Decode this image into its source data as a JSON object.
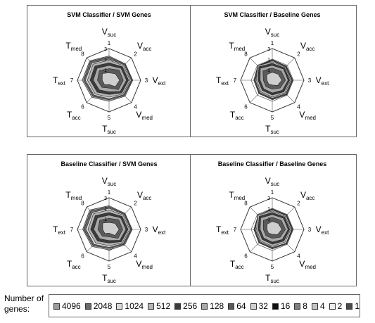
{
  "axes": {
    "names": [
      {
        "main": "V",
        "sub": "suc",
        "num": "1"
      },
      {
        "main": "V",
        "sub": "acc",
        "num": "2"
      },
      {
        "main": "V",
        "sub": "ext",
        "num": "3"
      },
      {
        "main": "V",
        "sub": "med",
        "num": "4"
      },
      {
        "main": "T",
        "sub": "suc",
        "num": "5"
      },
      {
        "main": "T",
        "sub": "acc",
        "num": "6"
      },
      {
        "main": "T",
        "sub": "ext",
        "num": "7"
      },
      {
        "main": "T",
        "sub": "med",
        "num": "8"
      }
    ],
    "tick_labels": [
      "-1",
      "1",
      "3"
    ]
  },
  "legend": {
    "title": "Number of genes:",
    "items": [
      {
        "label": "4096",
        "color": "#9a9a9a"
      },
      {
        "label": "2048",
        "color": "#6a6a6a"
      },
      {
        "label": "1024",
        "color": "#d8d8d8"
      },
      {
        "label": "512",
        "color": "#b5b5b5"
      },
      {
        "label": "256",
        "color": "#3c3c3c"
      },
      {
        "label": "128",
        "color": "#a8a8a8"
      },
      {
        "label": "64",
        "color": "#5a5a5a"
      },
      {
        "label": "32",
        "color": "#cfcfcf"
      },
      {
        "label": "16",
        "color": "#111111"
      },
      {
        "label": "8",
        "color": "#7f7f7f"
      },
      {
        "label": "4",
        "color": "#c3c3c3"
      },
      {
        "label": "2",
        "color": "#ededed"
      },
      {
        "label": "1",
        "color": "#4a4a4a"
      }
    ]
  },
  "chart_data": [
    {
      "type": "radar",
      "title": "SVM Classifier / SVM Genes",
      "rlim": [
        -3,
        3
      ],
      "rticks": [
        -1,
        1,
        3
      ],
      "series": [
        {
          "values": [
            1.6,
            1.4,
            1.5,
            1.3,
            1.0,
            1.6,
            2.1,
            2.2
          ]
        },
        {
          "values": [
            1.4,
            1.3,
            1.4,
            1.1,
            0.7,
            1.3,
            1.8,
            2.0
          ]
        },
        {
          "values": [
            1.0,
            1.1,
            1.2,
            0.9,
            0.5,
            1.0,
            1.5,
            1.6
          ]
        },
        {
          "values": [
            0.8,
            0.9,
            1.0,
            0.7,
            0.2,
            0.7,
            1.1,
            1.3
          ]
        },
        {
          "values": [
            0.3,
            0.6,
            0.7,
            0.4,
            -0.3,
            0.2,
            0.6,
            0.8
          ]
        },
        {
          "values": [
            -0.2,
            0.2,
            0.3,
            0.0,
            -0.8,
            -0.4,
            0.0,
            0.2
          ]
        },
        {
          "values": [
            -0.8,
            -0.3,
            -0.3,
            -0.5,
            -1.5,
            -1.1,
            -0.8,
            -0.4
          ]
        },
        {
          "values": [
            -1.6,
            -1.3,
            -1.0,
            -1.3,
            -2.2,
            -1.8,
            -1.7,
            -1.2
          ]
        }
      ]
    },
    {
      "type": "radar",
      "title": "SVM Classifier / Baseline Genes",
      "rlim": [
        -3,
        3
      ],
      "rticks": [
        -1,
        1,
        3
      ],
      "series": [
        {
          "values": [
            0.9,
            0.8,
            0.9,
            0.9,
            0.7,
            0.6,
            0.5,
            0.9
          ]
        },
        {
          "values": [
            0.8,
            0.7,
            0.8,
            0.8,
            0.6,
            0.5,
            0.4,
            0.8
          ]
        },
        {
          "values": [
            0.7,
            0.6,
            0.7,
            0.6,
            0.4,
            0.3,
            0.2,
            0.7
          ]
        },
        {
          "values": [
            0.5,
            0.5,
            0.5,
            0.4,
            0.2,
            0.1,
            0.0,
            0.9
          ]
        },
        {
          "values": [
            0.2,
            0.3,
            0.3,
            0.1,
            -0.2,
            -0.3,
            -0.3,
            0.6
          ]
        },
        {
          "values": [
            -0.2,
            0.0,
            0.0,
            -0.3,
            -0.6,
            -0.7,
            -0.7,
            0.2
          ]
        },
        {
          "values": [
            -0.7,
            -0.6,
            -0.5,
            -0.9,
            -1.3,
            -1.3,
            -1.3,
            -0.5
          ]
        },
        {
          "values": [
            -1.5,
            -1.4,
            -1.2,
            -1.6,
            -2.1,
            -2.0,
            -2.0,
            -1.5
          ]
        }
      ]
    },
    {
      "type": "radar",
      "title": "Baseline Classifier / SVM Genes",
      "rlim": [
        -3,
        3
      ],
      "rticks": [
        -1,
        1,
        3
      ],
      "series": [
        {
          "values": [
            1.5,
            1.3,
            1.4,
            1.2,
            0.9,
            1.6,
            2.0,
            2.2
          ]
        },
        {
          "values": [
            1.3,
            1.2,
            1.3,
            1.0,
            0.6,
            1.3,
            1.8,
            1.9
          ]
        },
        {
          "values": [
            1.0,
            1.0,
            1.1,
            0.8,
            0.4,
            1.0,
            1.4,
            1.5
          ]
        },
        {
          "values": [
            0.7,
            0.8,
            0.9,
            0.6,
            0.1,
            0.6,
            1.0,
            1.2
          ]
        },
        {
          "values": [
            0.2,
            0.5,
            0.6,
            0.3,
            -0.4,
            0.1,
            0.5,
            0.7
          ]
        },
        {
          "values": [
            -0.3,
            0.1,
            0.2,
            -0.1,
            -0.9,
            -0.5,
            -0.1,
            0.1
          ]
        },
        {
          "values": [
            -0.9,
            -0.4,
            -0.4,
            -0.6,
            -1.6,
            -1.2,
            -0.9,
            -0.5
          ]
        },
        {
          "values": [
            -1.7,
            -1.4,
            -1.1,
            -1.4,
            -2.3,
            -1.9,
            -1.8,
            -1.3
          ]
        }
      ]
    },
    {
      "type": "radar",
      "title": "Baseline Classifier / Baseline Genes",
      "rlim": [
        -3,
        3
      ],
      "rticks": [
        -1,
        1,
        3
      ],
      "series": [
        {
          "values": [
            0.9,
            0.9,
            0.9,
            0.9,
            0.7,
            0.6,
            0.5,
            0.8
          ]
        },
        {
          "values": [
            0.8,
            0.8,
            0.8,
            0.8,
            0.6,
            0.5,
            0.4,
            0.7
          ]
        },
        {
          "values": [
            0.7,
            0.7,
            0.7,
            0.7,
            0.4,
            0.3,
            0.2,
            0.9
          ]
        },
        {
          "values": [
            0.5,
            0.5,
            0.5,
            0.4,
            0.2,
            0.1,
            0.0,
            0.8
          ]
        },
        {
          "values": [
            0.2,
            0.3,
            0.3,
            0.1,
            -0.2,
            -0.3,
            -0.3,
            0.5
          ]
        },
        {
          "values": [
            -0.2,
            0.0,
            0.0,
            -0.3,
            -0.6,
            -0.7,
            -0.7,
            0.1
          ]
        },
        {
          "values": [
            -0.7,
            -0.6,
            -0.5,
            -0.9,
            -1.3,
            -1.3,
            -1.3,
            -0.6
          ]
        },
        {
          "values": [
            -1.5,
            -1.4,
            -1.2,
            -1.6,
            -2.1,
            -2.0,
            -2.0,
            -1.6
          ]
        }
      ]
    }
  ]
}
